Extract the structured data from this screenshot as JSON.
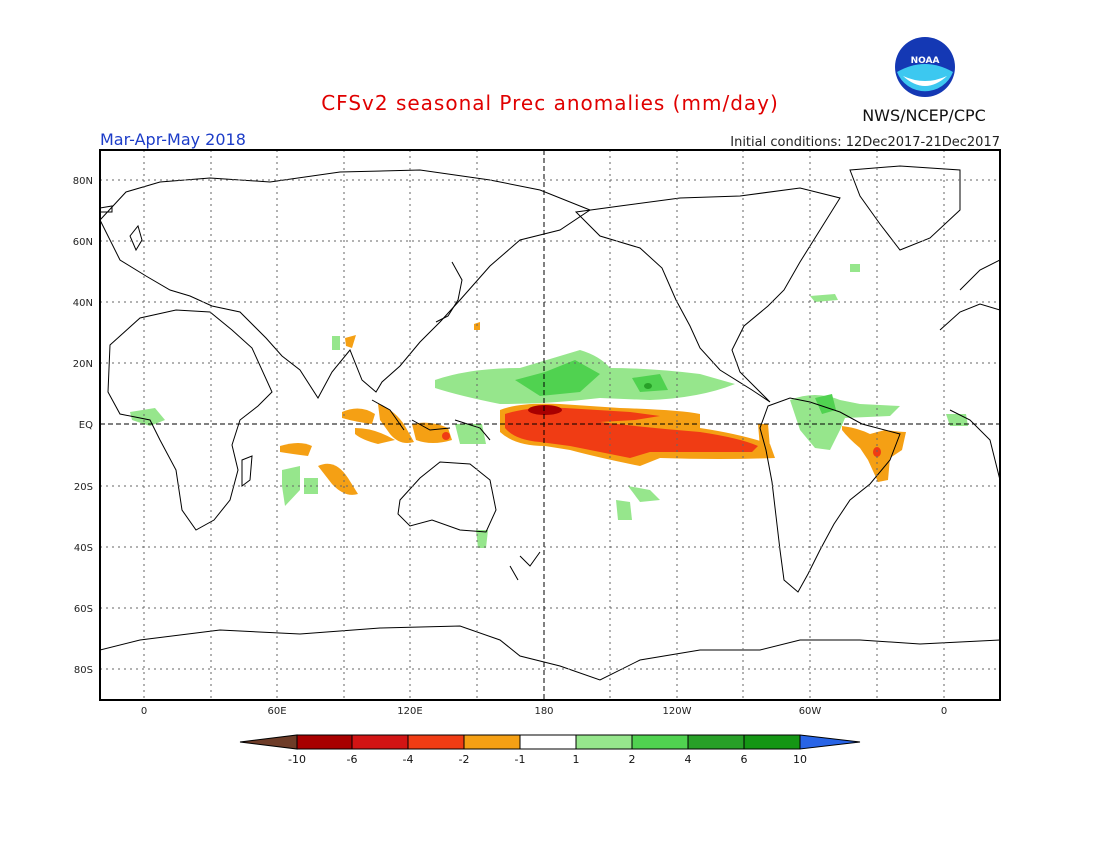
{
  "header": {
    "title": "CFSv2 seasonal Prec anomalies (mm/day)",
    "season": "Mar-Apr-May 2018",
    "initial_conditions": "Initial conditions: 12Dec2017-21Dec2017",
    "agency": "NWS/NCEP/CPC",
    "logo_text": "NOAA"
  },
  "colors": {
    "title": "#e00000",
    "season": "#1c3cc8",
    "red_dark": "#a80000",
    "red": "#d21414",
    "red_orange": "#f03c14",
    "orange": "#f5a014",
    "light_green": "#96e68c",
    "green": "#50d250",
    "green_dark": "#28a028",
    "blue": "#2864e6",
    "brown": "#6e3c28"
  },
  "map": {
    "lat_labels": [
      "80N",
      "60N",
      "40N",
      "20N",
      "EQ",
      "20S",
      "40S",
      "60S",
      "80S"
    ],
    "lon_labels": [
      "0",
      "60E",
      "120E",
      "180",
      "120W",
      "60W",
      "0"
    ]
  },
  "colorbar": {
    "labels": [
      "-10",
      "-6",
      "-4",
      "-2",
      "-1",
      "1",
      "2",
      "4",
      "6",
      "10"
    ],
    "bins": [
      {
        "color": "#6e3c28"
      },
      {
        "color": "#a80000"
      },
      {
        "color": "#d21414"
      },
      {
        "color": "#f03c14"
      },
      {
        "color": "#f5a014"
      },
      {
        "color": "#ffffff"
      },
      {
        "color": "#96e68c"
      },
      {
        "color": "#50d250"
      },
      {
        "color": "#28a028"
      },
      {
        "color": "#149614"
      },
      {
        "color": "#2864e6"
      }
    ]
  }
}
